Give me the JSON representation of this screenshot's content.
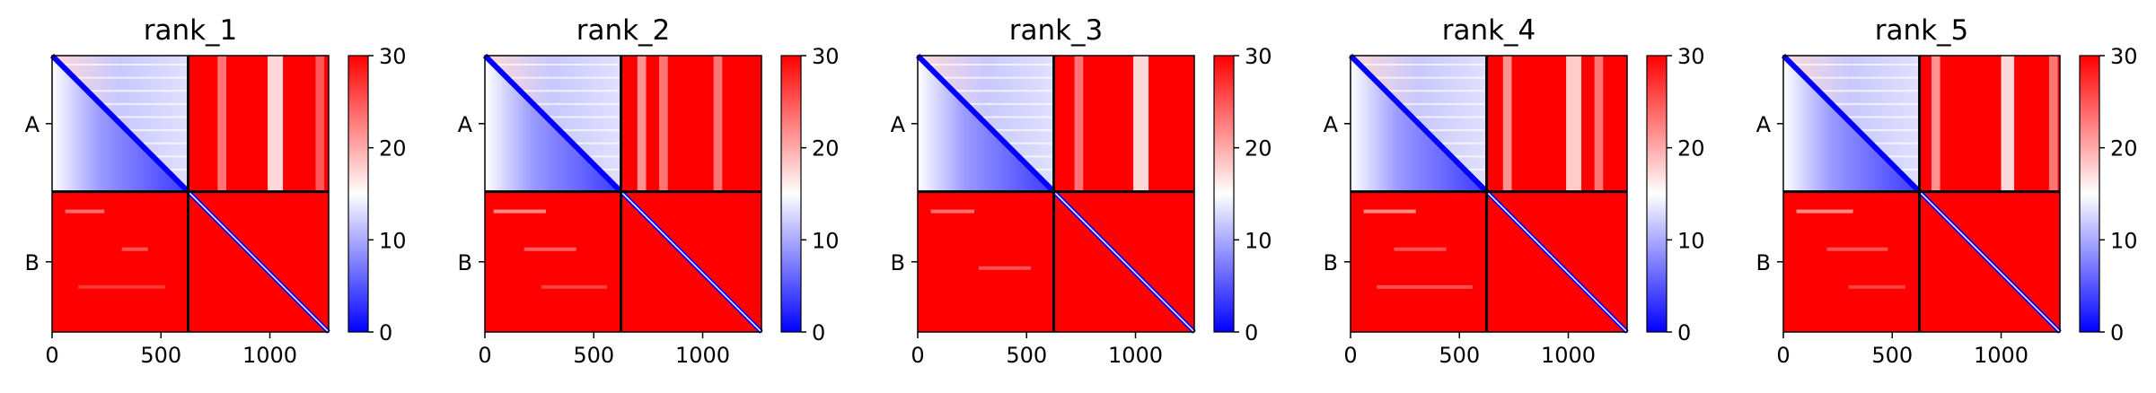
{
  "chart_data": {
    "type": "heatmap",
    "description_units": "predicted aligned error (PAE) heatmaps for 5 ranked models of a 2-chain complex",
    "colormap": {
      "name": "bwr",
      "low_color": "#0000ff",
      "mid_color": "#ffffff",
      "high_color": "#ff0000",
      "vmin": 0,
      "vmax": 30
    },
    "x_ticks": [
      0,
      500,
      1000
    ],
    "colorbar_ticks": [
      0,
      10,
      20,
      30
    ],
    "chain_labels": [
      "A",
      "B"
    ],
    "chain_lengths": [
      625,
      645
    ],
    "total_length": 1270,
    "panels": [
      {
        "title": "rank_1",
        "inter_chain_pae": 30,
        "intra_A_min_pae": 0,
        "intra_B_diag_pae": 0,
        "stripes_B_on_A": [
          {
            "start": 990,
            "end": 1060,
            "pae": 15
          },
          {
            "start": 760,
            "end": 800,
            "pae": 22
          },
          {
            "start": 1210,
            "end": 1250,
            "pae": 24
          }
        ],
        "stripes_A_on_B": [
          {
            "start": 60,
            "end": 240,
            "pae": 22
          },
          {
            "start": 320,
            "end": 440,
            "pae": 24
          },
          {
            "start": 120,
            "end": 520,
            "pae": 26
          }
        ]
      },
      {
        "title": "rank_2",
        "inter_chain_pae": 30,
        "intra_A_min_pae": 0,
        "intra_B_diag_pae": 0,
        "stripes_B_on_A": [
          {
            "start": 700,
            "end": 740,
            "pae": 20
          },
          {
            "start": 800,
            "end": 840,
            "pae": 22
          },
          {
            "start": 1050,
            "end": 1090,
            "pae": 22
          }
        ],
        "stripes_A_on_B": [
          {
            "start": 40,
            "end": 280,
            "pae": 20
          },
          {
            "start": 180,
            "end": 420,
            "pae": 23
          },
          {
            "start": 260,
            "end": 560,
            "pae": 25
          }
        ]
      },
      {
        "title": "rank_3",
        "inter_chain_pae": 30,
        "intra_A_min_pae": 0,
        "intra_B_diag_pae": 0,
        "stripes_B_on_A": [
          {
            "start": 990,
            "end": 1060,
            "pae": 15
          },
          {
            "start": 720,
            "end": 760,
            "pae": 22
          }
        ],
        "stripes_A_on_B": [
          {
            "start": 60,
            "end": 260,
            "pae": 22
          },
          {
            "start": 280,
            "end": 520,
            "pae": 24
          }
        ]
      },
      {
        "title": "rank_4",
        "inter_chain_pae": 30,
        "intra_A_min_pae": 0,
        "intra_B_diag_pae": 0,
        "stripes_B_on_A": [
          {
            "start": 700,
            "end": 740,
            "pae": 20
          },
          {
            "start": 990,
            "end": 1060,
            "pae": 16
          },
          {
            "start": 1120,
            "end": 1160,
            "pae": 22
          }
        ],
        "stripes_A_on_B": [
          {
            "start": 60,
            "end": 300,
            "pae": 20
          },
          {
            "start": 200,
            "end": 440,
            "pae": 24
          },
          {
            "start": 120,
            "end": 560,
            "pae": 24
          }
        ]
      },
      {
        "title": "rank_5",
        "inter_chain_pae": 30,
        "intra_A_min_pae": 0,
        "intra_B_diag_pae": 0,
        "stripes_B_on_A": [
          {
            "start": 680,
            "end": 720,
            "pae": 20
          },
          {
            "start": 1000,
            "end": 1060,
            "pae": 15
          },
          {
            "start": 1220,
            "end": 1260,
            "pae": 22
          }
        ],
        "stripes_A_on_B": [
          {
            "start": 60,
            "end": 320,
            "pae": 20
          },
          {
            "start": 200,
            "end": 480,
            "pae": 24
          },
          {
            "start": 300,
            "end": 560,
            "pae": 25
          }
        ]
      }
    ]
  }
}
